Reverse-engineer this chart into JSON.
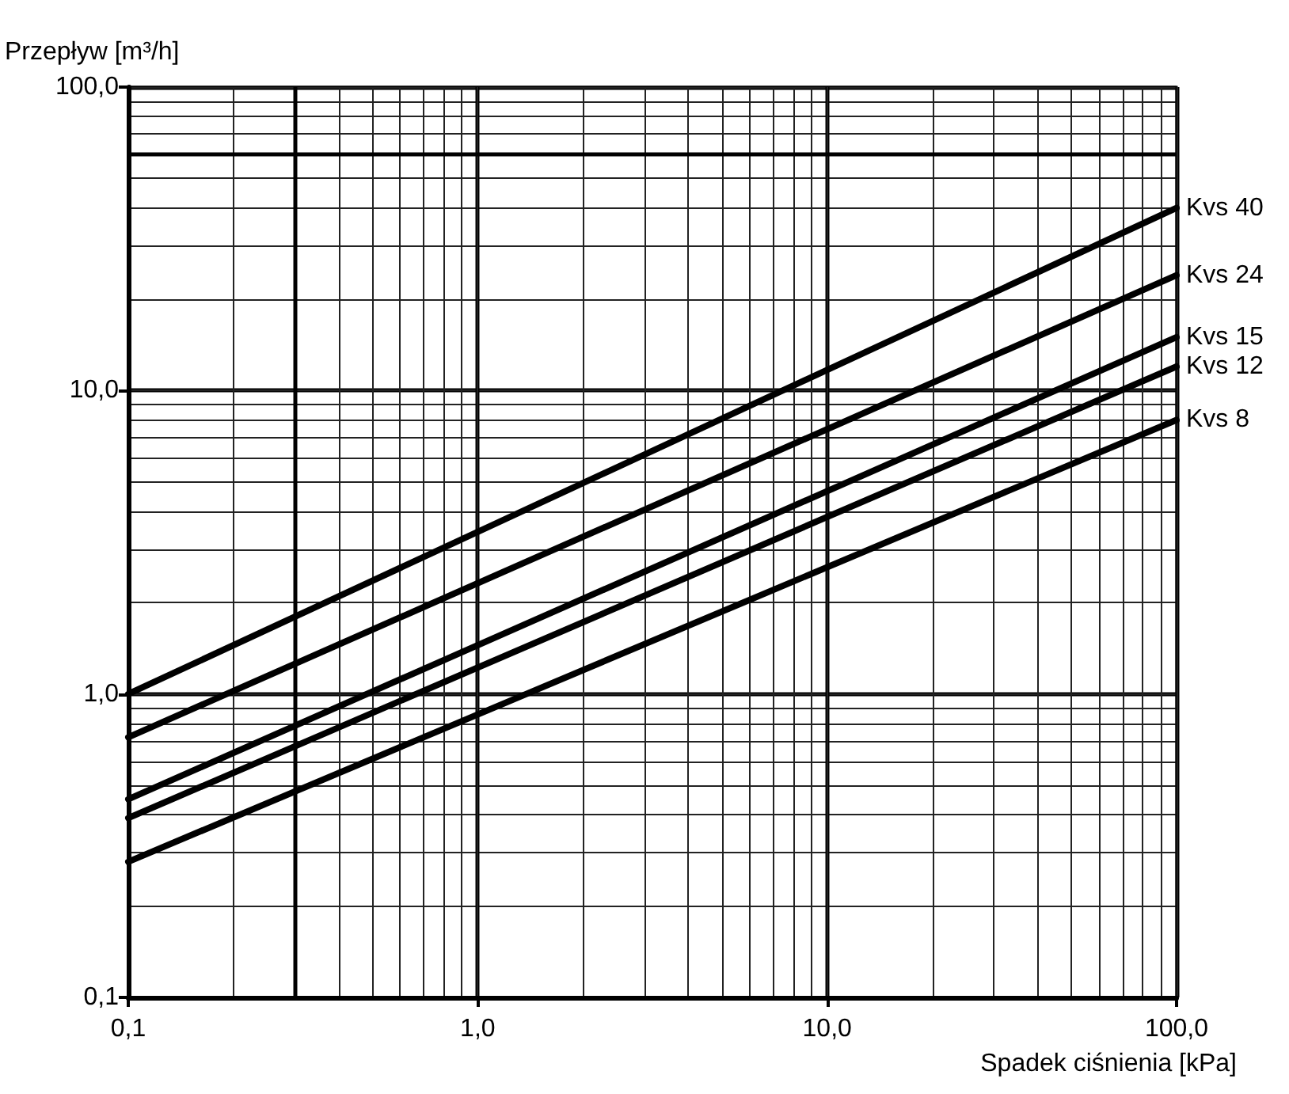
{
  "chart_data": {
    "type": "line",
    "xlabel": "Spadek ciśnienia [kPa]",
    "ylabel": "Przepływ [m³/h]",
    "log": "xy",
    "xlim": [
      0.1,
      100
    ],
    "ylim": [
      0.1,
      100
    ],
    "xticks": [
      {
        "value": 0.1,
        "label": "0,1"
      },
      {
        "value": 1,
        "label": "1,0"
      },
      {
        "value": 10,
        "label": "10,0"
      },
      {
        "value": 100,
        "label": "100,0"
      }
    ],
    "yticks": [
      {
        "value": 0.1,
        "label": "0,1"
      },
      {
        "value": 1,
        "label": "1,0"
      },
      {
        "value": 10,
        "label": "10,0"
      },
      {
        "value": 100,
        "label": "100,0"
      }
    ],
    "grid": true,
    "legend": false,
    "marker": "none",
    "line_style": "solid",
    "x": [
      0.1,
      100
    ],
    "series": [
      {
        "name": "Kvs 40",
        "color": "#000000",
        "values": [
          1.0,
          40
        ]
      },
      {
        "name": "Kvs 24",
        "color": "#000000",
        "values": [
          0.72,
          24
        ]
      },
      {
        "name": "Kvs 15",
        "color": "#000000",
        "values": [
          0.45,
          15
        ]
      },
      {
        "name": "Kvs 12",
        "color": "#000000",
        "values": [
          0.39,
          12
        ]
      },
      {
        "name": "Kvs 8",
        "color": "#000000",
        "values": [
          0.28,
          8
        ]
      }
    ],
    "ref_lines": [
      {
        "axis": "x",
        "value": 0.3,
        "color": "#000000"
      },
      {
        "axis": "y",
        "value": 60,
        "color": "#000000"
      }
    ]
  }
}
